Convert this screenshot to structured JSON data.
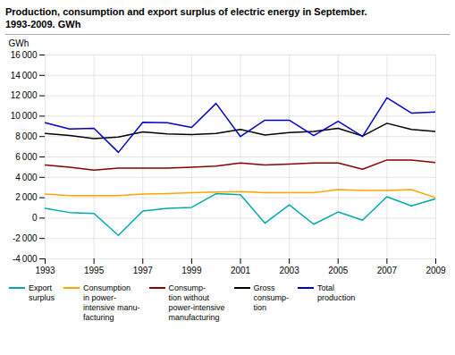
{
  "chart_data": {
    "type": "line",
    "title": "Production, consumption and export surplus of electric energy in September.",
    "subtitle": "1993-2009. GWh",
    "y_label": "GWh",
    "x": [
      1993,
      1994,
      1995,
      1996,
      1997,
      1998,
      1999,
      2000,
      2001,
      2002,
      2003,
      2004,
      2005,
      2006,
      2007,
      2008,
      2009
    ],
    "series": [
      {
        "name": "Export\nsurplus",
        "color": "#00AAAA",
        "values": [
          950,
          550,
          450,
          -1700,
          700,
          950,
          1050,
          2400,
          2300,
          -500,
          1300,
          -600,
          600,
          -200,
          2100,
          1200,
          1900
        ]
      },
      {
        "name": "Consumption\nin power-\nintensive manu-\nfacturing",
        "color": "#FFA500",
        "values": [
          2350,
          2200,
          2200,
          2200,
          2350,
          2400,
          2500,
          2550,
          2600,
          2500,
          2500,
          2500,
          2800,
          2700,
          2700,
          2800,
          2000
        ]
      },
      {
        "name": "Consump-\ntion without\npower-intensive\nmanufacturing",
        "color": "#8B0000",
        "values": [
          5200,
          5000,
          4700,
          4900,
          4900,
          4900,
          5000,
          5100,
          5400,
          5200,
          5300,
          5400,
          5400,
          4800,
          5700,
          5700,
          5450
        ]
      },
      {
        "name": "Gross\nconsump-\ntion",
        "color": "#000000",
        "values": [
          8300,
          8100,
          7800,
          7950,
          8450,
          8250,
          8200,
          8300,
          8700,
          8150,
          8400,
          8500,
          8800,
          8050,
          9300,
          8700,
          8500
        ]
      },
      {
        "name": "Total\nproduction",
        "color": "#0000CC",
        "values": [
          9350,
          8750,
          8800,
          6450,
          9400,
          9350,
          8900,
          11250,
          8000,
          9600,
          9600,
          8100,
          9500,
          8000,
          11800,
          10300,
          10400
        ]
      }
    ],
    "xlim": [
      1993,
      2009
    ],
    "xticks": [
      1993,
      1995,
      1997,
      1999,
      2001,
      2003,
      2005,
      2007,
      2009
    ],
    "ylim": [
      -4000,
      16000
    ],
    "yticks": [
      {
        "value": -4000,
        "label": "-4 000"
      },
      {
        "value": -2000,
        "label": "-2 000"
      },
      0,
      {
        "value": 2000,
        "label": "2 000"
      },
      {
        "value": 4000,
        "label": "4 000"
      },
      {
        "value": 6000,
        "label": "6 000"
      },
      {
        "value": 8000,
        "label": "8 000"
      },
      {
        "value": 10000,
        "label": "10 000"
      },
      {
        "value": 12000,
        "label": "12 000"
      },
      {
        "value": 14000,
        "label": "14 000"
      },
      {
        "value": 16000,
        "label": "16 000"
      }
    ],
    "grid": true,
    "legend": "bottom"
  }
}
